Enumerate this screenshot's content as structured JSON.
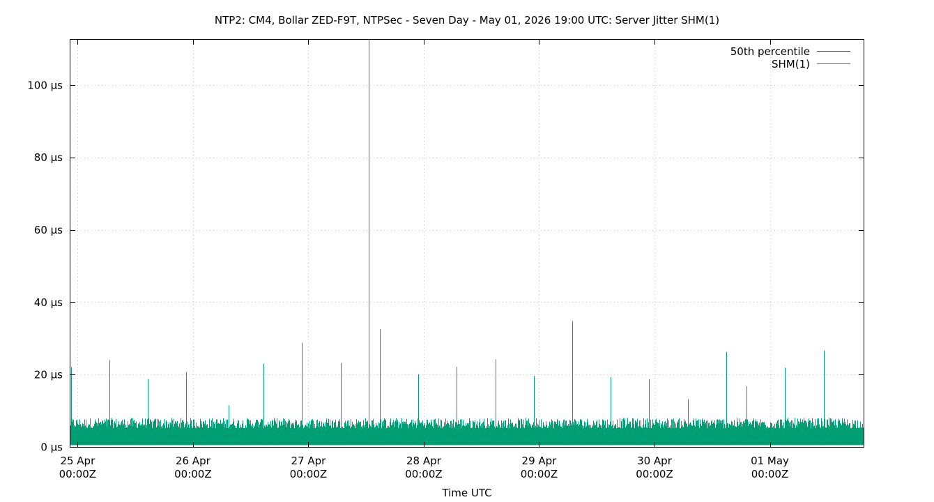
{
  "chart_data": {
    "type": "area",
    "title": "NTP2: CM4, Bollar ZED-F9T, NTPSec - Seven Day - May 01, 2026 19:00 UTC: Server Jitter SHM(1)",
    "xlabel": "Time UTC",
    "ylabel": "",
    "x_unit": "hours since 24 Apr 00:00Z",
    "xlim": [
      22.5,
      187.5
    ],
    "ylim": [
      0,
      112.5
    ],
    "y_ticks": [
      {
        "value": 0,
        "label": "0 µs"
      },
      {
        "value": 20,
        "label": "20 µs"
      },
      {
        "value": 40,
        "label": "40 µs"
      },
      {
        "value": 60,
        "label": "60 µs"
      },
      {
        "value": 80,
        "label": "80 µs"
      },
      {
        "value": 100,
        "label": "100 µs"
      }
    ],
    "x_ticks": [
      {
        "value": 24,
        "line1": "25 Apr",
        "line2": "00:00Z"
      },
      {
        "value": 48,
        "line1": "26 Apr",
        "line2": "00:00Z"
      },
      {
        "value": 72,
        "line1": "27 Apr",
        "line2": "00:00Z"
      },
      {
        "value": 96,
        "line1": "28 Apr",
        "line2": "00:00Z"
      },
      {
        "value": 120,
        "line1": "29 Apr",
        "line2": "00:00Z"
      },
      {
        "value": 144,
        "line1": "30 Apr",
        "line2": "00:00Z"
      },
      {
        "value": 168,
        "line1": "01 May",
        "line2": "00:00Z"
      }
    ],
    "grid": true,
    "legend_position": "top-right",
    "series": [
      {
        "name": "50th percentile",
        "color": "#9400d3",
        "style": "line",
        "values": []
      },
      {
        "name": "SHM(1)",
        "color": "#009e73",
        "style": "impulses",
        "baseline_band": [
          0.5,
          8
        ],
        "spikes": [
          {
            "x": 22.7,
            "y": 22
          },
          {
            "x": 30.6,
            "y": 24
          },
          {
            "x": 38.6,
            "y": 18.7
          },
          {
            "x": 46.6,
            "y": 20.7
          },
          {
            "x": 55.4,
            "y": 11.5
          },
          {
            "x": 62.6,
            "y": 23
          },
          {
            "x": 70.6,
            "y": 28.8
          },
          {
            "x": 78.7,
            "y": 23.2
          },
          {
            "x": 84.5,
            "y": 112.5
          },
          {
            "x": 86.9,
            "y": 32.5
          },
          {
            "x": 94.8,
            "y": 20.1
          },
          {
            "x": 102.8,
            "y": 22.1
          },
          {
            "x": 110.9,
            "y": 24.2
          },
          {
            "x": 118.9,
            "y": 19.6
          },
          {
            "x": 126.9,
            "y": 34.8
          },
          {
            "x": 134.9,
            "y": 19.3
          },
          {
            "x": 142.9,
            "y": 18.7
          },
          {
            "x": 151.0,
            "y": 13.2
          },
          {
            "x": 159.0,
            "y": 26.2
          },
          {
            "x": 163.1,
            "y": 16.8
          },
          {
            "x": 171.1,
            "y": 21.9
          },
          {
            "x": 179.2,
            "y": 26.6
          }
        ]
      }
    ]
  }
}
